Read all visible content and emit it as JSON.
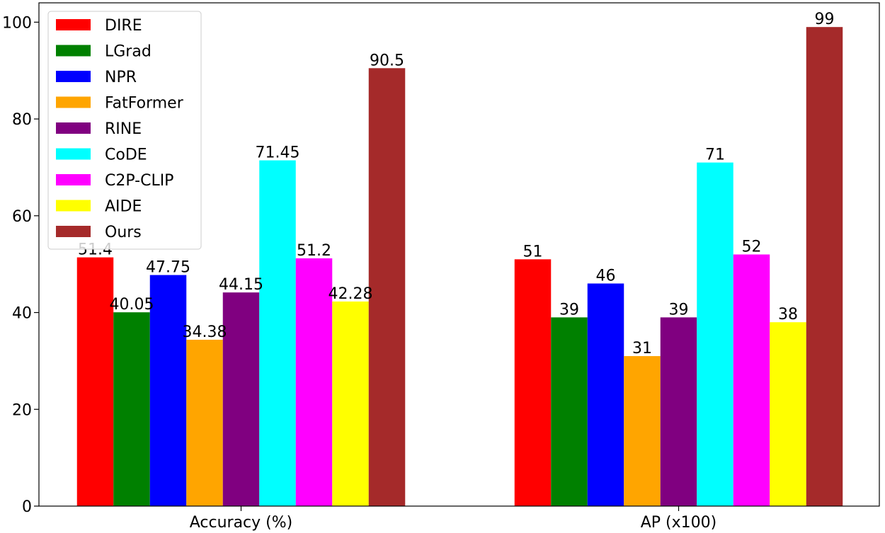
{
  "chart_data": {
    "type": "bar",
    "categories": [
      "Accuracy (%)",
      "AP (x100)"
    ],
    "series": [
      {
        "name": "DIRE",
        "color": "#ff0000",
        "values": [
          51.4,
          51
        ],
        "labels": [
          "51.4",
          "51"
        ]
      },
      {
        "name": "LGrad",
        "color": "#008000",
        "values": [
          40.05,
          39
        ],
        "labels": [
          "40.05",
          "39"
        ]
      },
      {
        "name": "NPR",
        "color": "#0000ff",
        "values": [
          47.75,
          46
        ],
        "labels": [
          "47.75",
          "46"
        ]
      },
      {
        "name": "FatFormer",
        "color": "#ffa500",
        "values": [
          34.38,
          31
        ],
        "labels": [
          "34.38",
          "31"
        ]
      },
      {
        "name": "RINE",
        "color": "#800080",
        "values": [
          44.15,
          39
        ],
        "labels": [
          "44.15",
          "39"
        ]
      },
      {
        "name": "CoDE",
        "color": "#00ffff",
        "values": [
          71.45,
          71
        ],
        "labels": [
          "71.45",
          "71"
        ]
      },
      {
        "name": "C2P-CLIP",
        "color": "#ff00ff",
        "values": [
          51.2,
          52
        ],
        "labels": [
          "51.2",
          "52"
        ]
      },
      {
        "name": "AIDE",
        "color": "#ffff00",
        "values": [
          42.28,
          38
        ],
        "labels": [
          "42.28",
          "38"
        ]
      },
      {
        "name": "Ours",
        "color": "#a52a2a",
        "values": [
          90.5,
          99
        ],
        "labels": [
          "90.5",
          "99"
        ]
      }
    ],
    "ylim": [
      0,
      104
    ],
    "yticks": [
      0,
      20,
      40,
      60,
      80,
      100
    ],
    "ytick_labels": [
      "0",
      "20",
      "40",
      "60",
      "80",
      "100"
    ],
    "legend_position": "top-left",
    "grid": false
  }
}
